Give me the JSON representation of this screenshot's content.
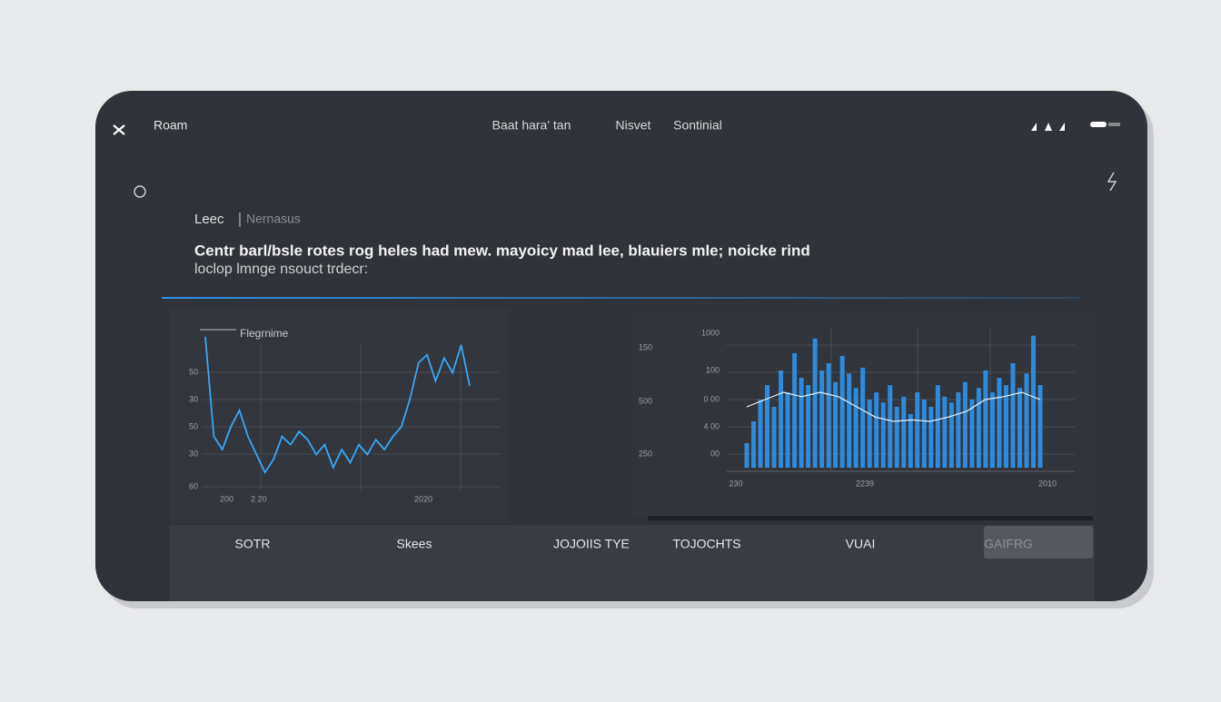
{
  "header": {
    "back": "Roam",
    "tabs": [
      "Baat hara' tan",
      "Nisvet",
      "Sontinial"
    ]
  },
  "section": {
    "label": "Leec",
    "sublabel": "Nernasus"
  },
  "headline": "Centr barl/bsle rotes rog heles had mew. mayoicy mad lee, blauiers mle; noicke rind",
  "subline": "loclop lmnge nsouct trdecr:",
  "chart_left": {
    "legend": "Flegrnime",
    "ylabels": [
      "50",
      "30",
      "50",
      "30",
      "60"
    ],
    "xlabels": [
      "200",
      "2 20",
      "2020"
    ],
    "ylim": [
      0,
      100
    ],
    "values": [
      94,
      33,
      25,
      39,
      49,
      33,
      22,
      11,
      19,
      33,
      28,
      36,
      31,
      22,
      28,
      14,
      25,
      17,
      28,
      22,
      31,
      25,
      33,
      39,
      56,
      78,
      83,
      67,
      81,
      72,
      89,
      64
    ],
    "color": "#3aa6f5"
  },
  "chart_right": {
    "ylabels_outer": [
      "150",
      "500",
      "250"
    ],
    "ylabels": [
      "1000",
      "100",
      "0 00",
      "4 00",
      "00"
    ],
    "xlabels": [
      "230",
      "2239",
      "2010"
    ],
    "ylim": [
      0,
      100
    ],
    "bars": [
      20,
      35,
      50,
      60,
      45,
      70,
      55,
      82,
      65,
      60,
      92,
      70,
      75,
      62,
      80,
      68,
      58,
      72,
      50,
      55,
      48,
      60,
      45,
      52,
      40,
      55,
      50,
      45,
      60,
      52,
      48,
      55,
      62,
      50,
      58,
      70,
      55,
      65,
      60,
      75,
      58,
      68,
      94,
      60
    ],
    "trend": [
      45,
      50,
      55,
      52,
      55,
      52,
      45,
      38,
      35,
      36,
      35,
      38,
      42,
      50,
      52,
      55,
      50
    ],
    "color": "#2f94ec"
  },
  "nav": {
    "items": [
      "SOTR",
      "Skees",
      "JOJOIIS TYE",
      "TOJOCHTS",
      "VUAI",
      "GAIFRG"
    ]
  }
}
